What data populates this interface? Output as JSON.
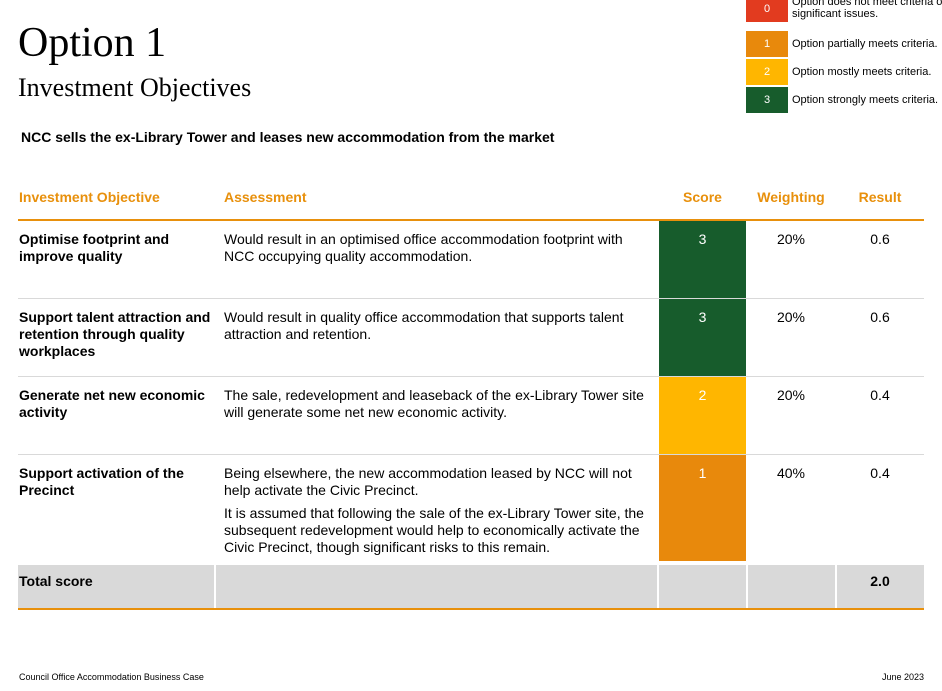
{
  "header": {
    "title": "Option 1",
    "subtitle": "Investment Objectives",
    "option_description": "NCC sells the ex-Library Tower and leases new accommodation from the market"
  },
  "legend": [
    {
      "score": "0",
      "text_line1": "Option does not meet criteria o",
      "text_line2": "significant issues.",
      "color": "#e23b1f"
    },
    {
      "score": "1",
      "text_line1": "Option partially meets criteria.",
      "text_line2": "",
      "color": "#e8890c"
    },
    {
      "score": "2",
      "text_line1": "Option mostly meets criteria.",
      "text_line2": "",
      "color": "#ffb600"
    },
    {
      "score": "3",
      "text_line1": "Option strongly meets criteria.",
      "text_line2": "",
      "color": "#175c2c"
    }
  ],
  "table": {
    "columns": {
      "objective": "Investment Objective",
      "assessment": "Assessment",
      "score": "Score",
      "weighting": "Weighting",
      "result": "Result"
    },
    "rows": [
      {
        "objective": "Optimise footprint and improve quality",
        "assessment_1": "Would result in an optimised office accommodation footprint with NCC occupying quality accommodation.",
        "assessment_2": "",
        "score": "3",
        "score_color": "#175c2c",
        "weighting": "20%",
        "result": "0.6"
      },
      {
        "objective": "Support talent attraction and retention through quality workplaces",
        "assessment_1": "Would result in quality office accommodation that supports talent attraction and retention.",
        "assessment_2": "",
        "score": "3",
        "score_color": "#175c2c",
        "weighting": "20%",
        "result": "0.6"
      },
      {
        "objective": "Generate net new economic activity",
        "assessment_1": "The sale, redevelopment and leaseback of the ex-Library Tower site will generate some net new economic activity.",
        "assessment_2": "",
        "score": "2",
        "score_color": "#ffb600",
        "weighting": "20%",
        "result": "0.4"
      },
      {
        "objective": "Support activation of the Precinct",
        "assessment_1": "Being elsewhere, the new accommodation leased by NCC will not help activate the Civic Precinct.",
        "assessment_2": "It is assumed that following the sale of the ex-Library Tower site, the subsequent redevelopment would help to economically activate the Civic Precinct, though significant risks to this remain.",
        "score": "1",
        "score_color": "#e8890c",
        "weighting": "40%",
        "result": "0.4"
      }
    ],
    "total_label": "Total score",
    "total_value": "2.0"
  },
  "footer": {
    "left": "Council Office Accommodation Business Case",
    "right": "June 2023"
  }
}
